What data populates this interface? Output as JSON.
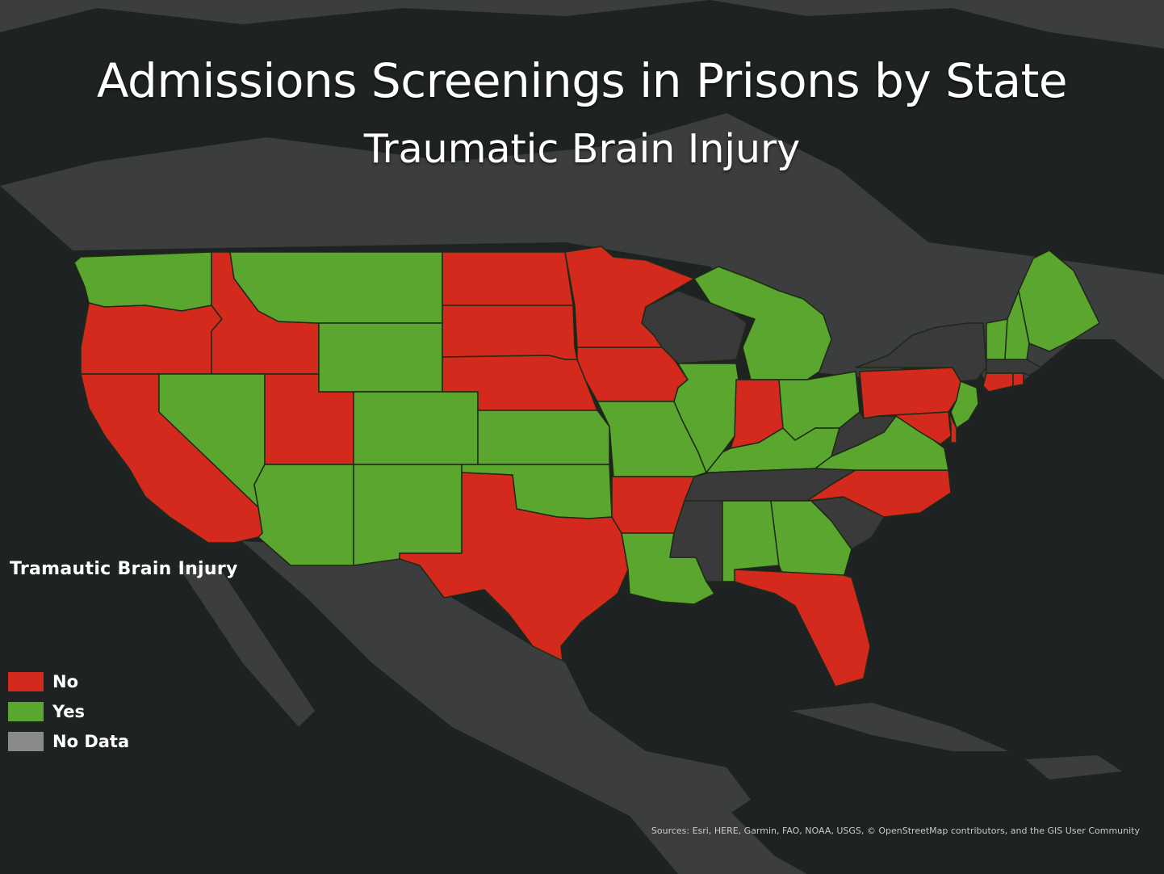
{
  "title": "Admissions Screenings in Prisons by State",
  "subtitle": "Traumatic Brain Injury",
  "legend": {
    "title": "Tramautic  Brain Injury",
    "items": [
      {
        "label": "No",
        "color": "#d42a1e",
        "icon": "red-swatch"
      },
      {
        "label": "Yes",
        "color": "#5ba62f",
        "icon": "green-swatch"
      },
      {
        "label": "No Data",
        "color": "#8a8a8a",
        "icon": "gray-swatch"
      }
    ]
  },
  "attribution": "Sources: Esri, HERE, Garmin, FAO, NOAA, USGS, © OpenStreetMap contributors, and the GIS User Community",
  "colors": {
    "no": "#d42a1e",
    "yes": "#5ba62f",
    "no_data": "#3a3a3a",
    "land": "#3b3d3e",
    "water": "#1f2223",
    "border": "#1f2a16"
  },
  "states": [
    {
      "name": "Washington",
      "value": "Yes"
    },
    {
      "name": "Oregon",
      "value": "No"
    },
    {
      "name": "California",
      "value": "No"
    },
    {
      "name": "Idaho",
      "value": "No"
    },
    {
      "name": "Nevada",
      "value": "Yes"
    },
    {
      "name": "Utah",
      "value": "No"
    },
    {
      "name": "Arizona",
      "value": "Yes"
    },
    {
      "name": "Montana",
      "value": "Yes"
    },
    {
      "name": "Wyoming",
      "value": "Yes"
    },
    {
      "name": "Colorado",
      "value": "Yes"
    },
    {
      "name": "New Mexico",
      "value": "Yes"
    },
    {
      "name": "North Dakota",
      "value": "No"
    },
    {
      "name": "South Dakota",
      "value": "No"
    },
    {
      "name": "Nebraska",
      "value": "No"
    },
    {
      "name": "Kansas",
      "value": "Yes"
    },
    {
      "name": "Oklahoma",
      "value": "Yes"
    },
    {
      "name": "Texas",
      "value": "No"
    },
    {
      "name": "Minnesota",
      "value": "No"
    },
    {
      "name": "Iowa",
      "value": "No"
    },
    {
      "name": "Missouri",
      "value": "Yes"
    },
    {
      "name": "Arkansas",
      "value": "No"
    },
    {
      "name": "Louisiana",
      "value": "Yes"
    },
    {
      "name": "Wisconsin",
      "value": "No Data"
    },
    {
      "name": "Illinois",
      "value": "Yes"
    },
    {
      "name": "Michigan",
      "value": "Yes"
    },
    {
      "name": "Indiana",
      "value": "No"
    },
    {
      "name": "Ohio",
      "value": "Yes"
    },
    {
      "name": "Kentucky",
      "value": "Yes"
    },
    {
      "name": "Tennessee",
      "value": "No Data"
    },
    {
      "name": "Mississippi",
      "value": "No Data"
    },
    {
      "name": "Alabama",
      "value": "Yes"
    },
    {
      "name": "Georgia",
      "value": "Yes"
    },
    {
      "name": "Florida",
      "value": "No"
    },
    {
      "name": "South Carolina",
      "value": "No Data"
    },
    {
      "name": "North Carolina",
      "value": "No"
    },
    {
      "name": "Virginia",
      "value": "Yes"
    },
    {
      "name": "West Virginia",
      "value": "No Data"
    },
    {
      "name": "Pennsylvania",
      "value": "No"
    },
    {
      "name": "New York",
      "value": "No Data"
    },
    {
      "name": "New Jersey",
      "value": "Yes"
    },
    {
      "name": "Maryland",
      "value": "No"
    },
    {
      "name": "Delaware",
      "value": "No"
    },
    {
      "name": "Connecticut",
      "value": "No"
    },
    {
      "name": "Rhode Island",
      "value": "No"
    },
    {
      "name": "Massachusetts",
      "value": "No Data"
    },
    {
      "name": "Vermont",
      "value": "Yes"
    },
    {
      "name": "New Hampshire",
      "value": "Yes"
    },
    {
      "name": "Maine",
      "value": "Yes"
    }
  ]
}
